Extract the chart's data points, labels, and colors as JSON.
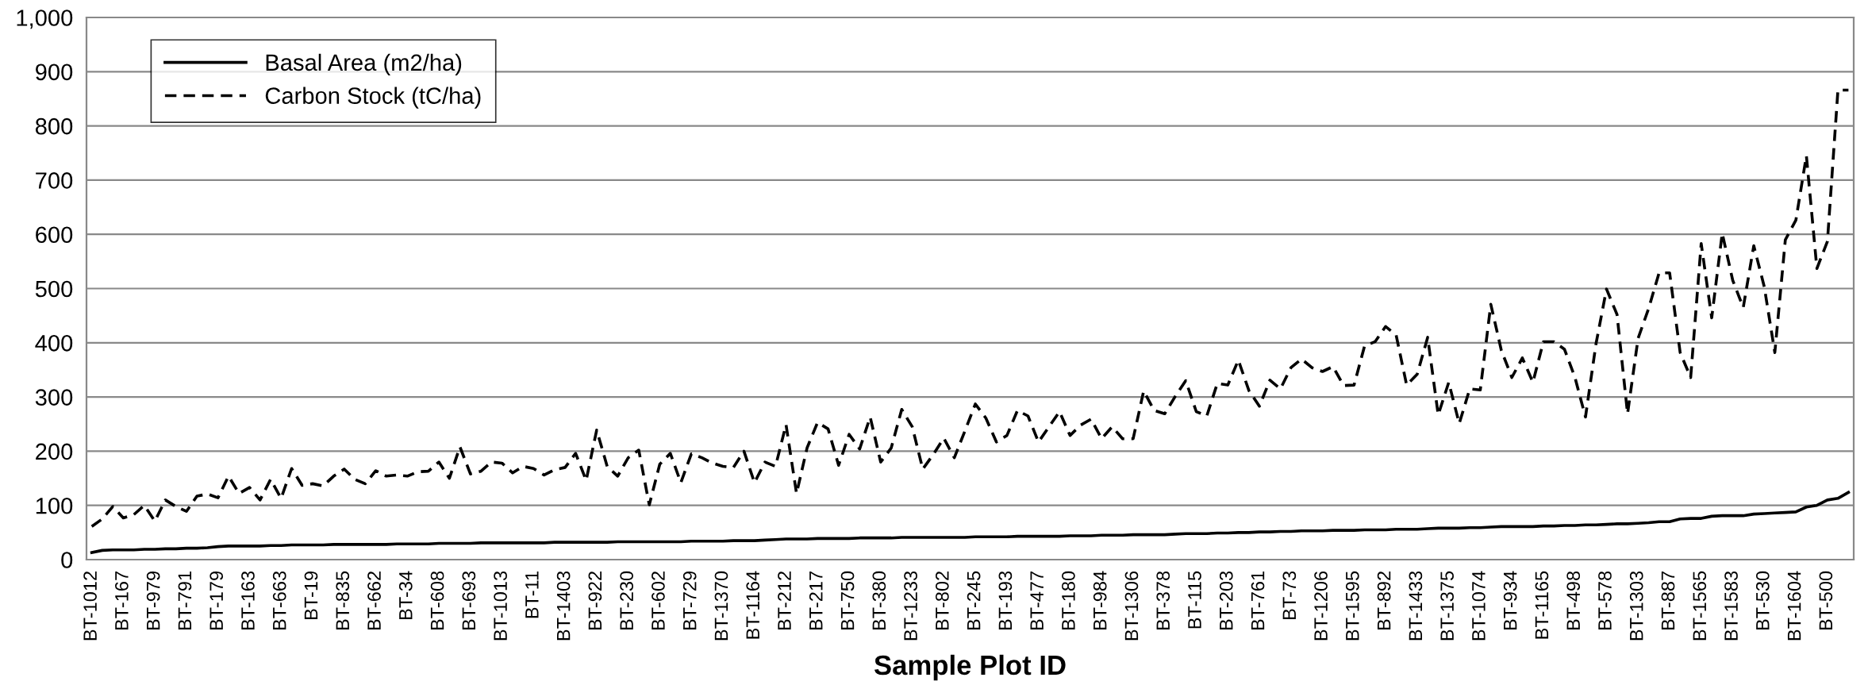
{
  "chart_data": {
    "type": "line",
    "xlabel": "Sample Plot ID",
    "categories": [
      "BT-1012",
      null,
      null,
      "BT-167",
      null,
      null,
      "BT-979",
      null,
      null,
      "BT-791",
      null,
      null,
      "BT-179",
      null,
      null,
      "BT-163",
      null,
      null,
      "BT-663",
      null,
      null,
      "BT-19",
      null,
      null,
      "BT-835",
      null,
      null,
      "BT-662",
      null,
      null,
      "BT-34",
      null,
      null,
      "BT-608",
      null,
      null,
      "BT-693",
      null,
      null,
      "BT-1013",
      null,
      null,
      "BT-11",
      null,
      null,
      "BT-1403",
      null,
      null,
      "BT-922",
      null,
      null,
      "BT-230",
      null,
      null,
      "BT-602",
      null,
      null,
      "BT-729",
      null,
      null,
      "BT-1370",
      null,
      null,
      "BT-1164",
      null,
      null,
      "BT-212",
      null,
      null,
      "BT-217",
      null,
      null,
      "BT-750",
      null,
      null,
      "BT-380",
      null,
      null,
      "BT-1233",
      null,
      null,
      "BT-802",
      null,
      null,
      "BT-245",
      null,
      null,
      "BT-193",
      null,
      null,
      "BT-477",
      null,
      null,
      "BT-180",
      null,
      null,
      "BT-984",
      null,
      null,
      "BT-1306",
      null,
      null,
      "BT-378",
      null,
      null,
      "BT-115",
      null,
      null,
      "BT-203",
      null,
      null,
      "BT-761",
      null,
      null,
      "BT-73",
      null,
      null,
      "BT-1206",
      null,
      null,
      "BT-1595",
      null,
      null,
      "BT-892",
      null,
      null,
      "BT-1433",
      null,
      null,
      "BT-1375",
      null,
      null,
      "BT-1074",
      null,
      null,
      "BT-934",
      null,
      null,
      "BT-1165",
      null,
      null,
      "BT-498",
      null,
      null,
      "BT-578",
      null,
      null,
      "BT-1303",
      null,
      null,
      "BT-887",
      null,
      null,
      "BT-1565",
      null,
      null,
      "BT-1583",
      null,
      null,
      "BT-530",
      null,
      null,
      "BT-1604",
      null,
      null,
      "BT-500",
      null,
      null
    ],
    "series": [
      {
        "name": "Basal Area (m2/ha)",
        "color": "#000000",
        "line_style": "solid",
        "values": [
          13,
          17,
          18,
          18,
          18,
          19,
          19,
          20,
          20,
          21,
          21,
          22,
          24,
          25,
          25,
          25,
          25,
          26,
          26,
          27,
          27,
          27,
          27,
          28,
          28,
          28,
          28,
          28,
          28,
          29,
          29,
          29,
          29,
          30,
          30,
          30,
          30,
          31,
          31,
          31,
          31,
          31,
          31,
          31,
          32,
          32,
          32,
          32,
          32,
          32,
          33,
          33,
          33,
          33,
          33,
          33,
          33,
          34,
          34,
          34,
          34,
          35,
          35,
          35,
          36,
          37,
          38,
          38,
          38,
          39,
          39,
          39,
          39,
          40,
          40,
          40,
          40,
          41,
          41,
          41,
          41,
          41,
          41,
          41,
          42,
          42,
          42,
          42,
          43,
          43,
          43,
          43,
          43,
          44,
          44,
          44,
          45,
          45,
          45,
          46,
          46,
          46,
          46,
          47,
          48,
          48,
          48,
          49,
          49,
          50,
          50,
          51,
          51,
          52,
          52,
          53,
          53,
          53,
          54,
          54,
          54,
          55,
          55,
          55,
          56,
          56,
          56,
          57,
          58,
          58,
          58,
          59,
          59,
          60,
          61,
          61,
          61,
          61,
          62,
          62,
          63,
          63,
          64,
          64,
          65,
          66,
          66,
          67,
          68,
          70,
          70,
          75,
          76,
          76,
          80,
          81,
          81,
          81,
          84,
          85,
          86,
          87,
          88,
          97,
          100,
          110,
          113,
          124
        ]
      },
      {
        "name": "Carbon Stock (tC/ha)",
        "color": "#000000",
        "line_style": "dashed",
        "values": [
          61,
          75,
          98,
          77,
          83,
          100,
          71,
          110,
          98,
          89,
          117,
          121,
          114,
          154,
          122,
          133,
          110,
          148,
          113,
          168,
          137,
          140,
          136,
          154,
          167,
          148,
          140,
          164,
          154,
          156,
          154,
          162,
          163,
          180,
          150,
          208,
          158,
          163,
          180,
          178,
          160,
          172,
          168,
          156,
          166,
          170,
          196,
          146,
          239,
          172,
          154,
          188,
          202,
          101,
          176,
          196,
          142,
          195,
          188,
          178,
          172,
          170,
          200,
          142,
          180,
          172,
          249,
          122,
          206,
          253,
          241,
          174,
          231,
          204,
          263,
          180,
          206,
          277,
          245,
          167,
          194,
          224,
          188,
          237,
          287,
          261,
          217,
          229,
          275,
          265,
          217,
          245,
          273,
          229,
          248,
          259,
          223,
          245,
          223,
          223,
          311,
          275,
          269,
          301,
          330,
          273,
          265,
          325,
          322,
          368,
          312,
          283,
          331,
          315,
          354,
          370,
          354,
          347,
          356,
          321,
          322,
          394,
          402,
          430,
          414,
          322,
          342,
          410,
          267,
          327,
          251,
          315,
          313,
          471,
          386,
          336,
          372,
          327,
          402,
          402,
          388,
          336,
          263,
          398,
          499,
          452,
          269,
          408,
          463,
          529,
          529,
          382,
          336,
          583,
          446,
          602,
          515,
          465,
          579,
          503,
          382,
          590,
          626,
          745,
          537,
          587,
          866,
          866
        ]
      }
    ],
    "ylim": [
      0,
      1000
    ],
    "yticks": [
      0,
      100,
      200,
      300,
      400,
      500,
      600,
      700,
      800,
      900,
      {
        "value": 1000,
        "label": "1,000"
      }
    ],
    "grid": "y",
    "legend": "top left",
    "marker": "none"
  }
}
